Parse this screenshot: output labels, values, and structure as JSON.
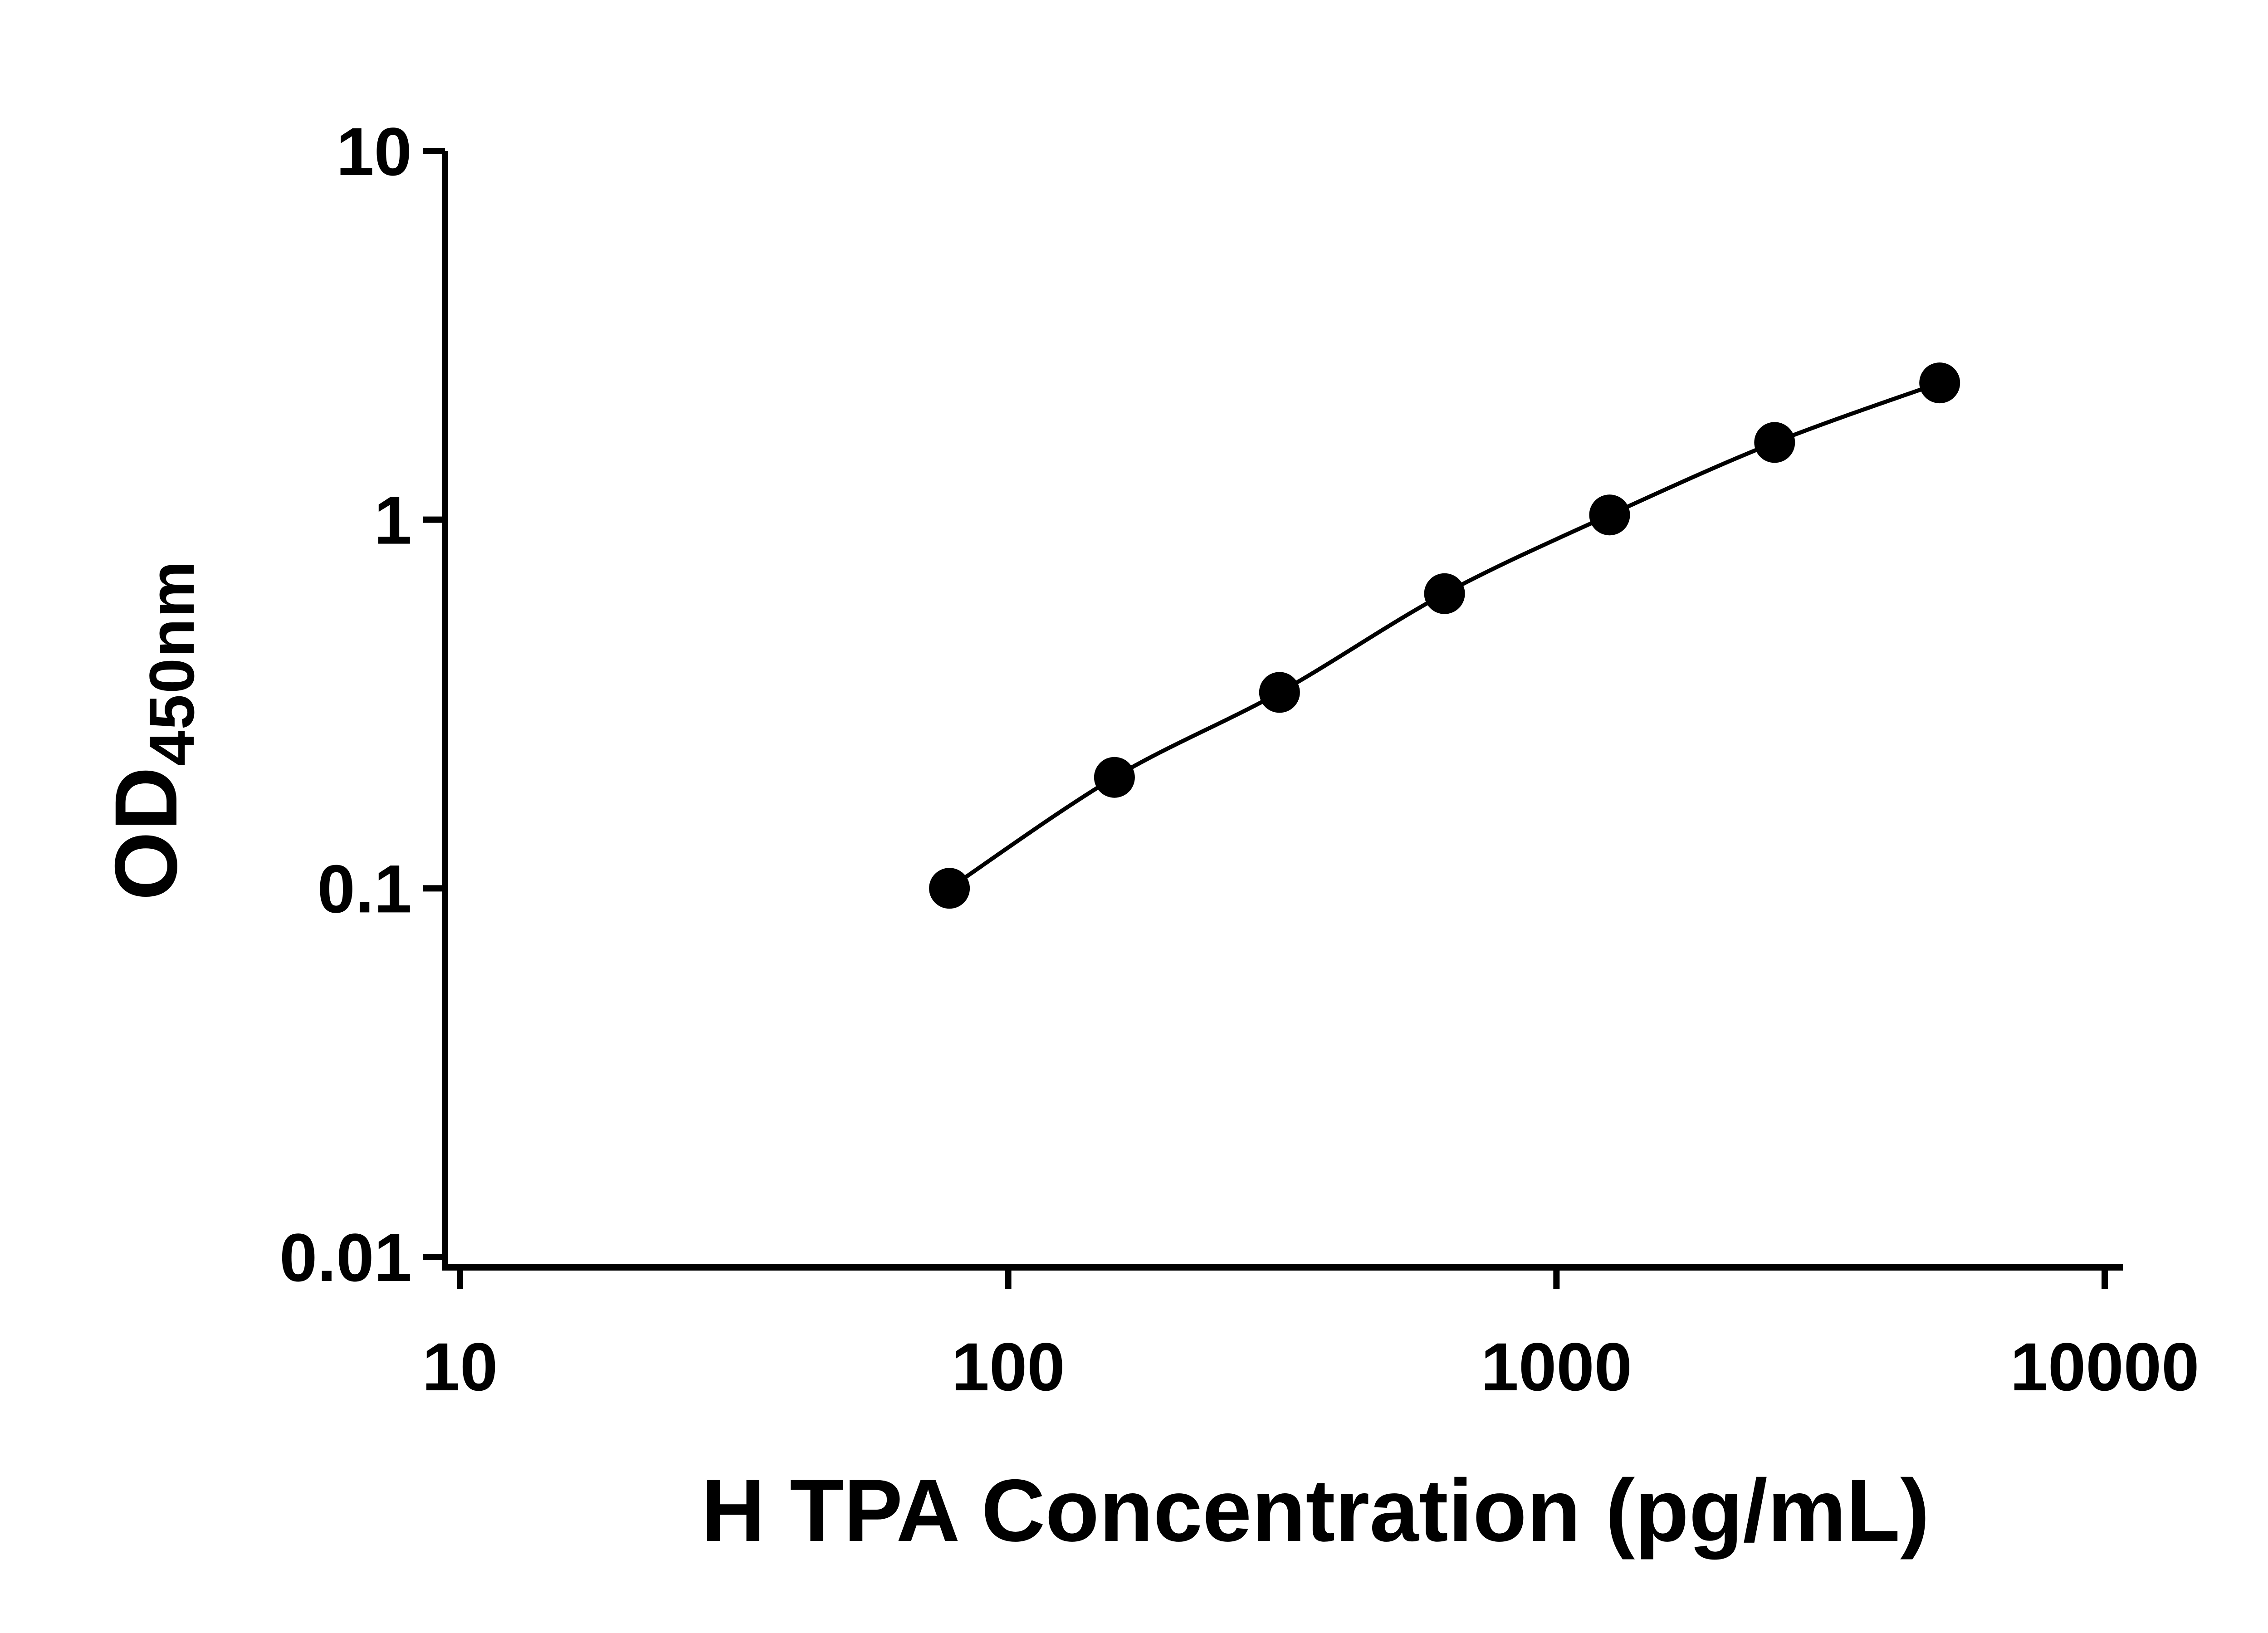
{
  "chart_data": {
    "type": "line",
    "title": "",
    "xlabel": "H TPA Concentration (pg/mL)",
    "ylabel_main": "OD",
    "ylabel_sub": "450nm",
    "xscale": "log",
    "yscale": "log",
    "xlim": [
      10,
      10000
    ],
    "ylim": [
      0.01,
      10
    ],
    "grid": false,
    "legend": "none",
    "x": [
      78.125,
      156.25,
      312.5,
      625,
      1250,
      2500,
      5000
    ],
    "y": [
      0.1,
      0.2,
      0.34,
      0.63,
      1.03,
      1.62,
      2.35
    ],
    "x_ticks": {
      "values": [
        10,
        100,
        1000,
        10000
      ],
      "labels": [
        "10",
        "100",
        "1000",
        "10000"
      ]
    },
    "y_ticks": {
      "values": [
        0.01,
        0.1,
        1,
        10
      ],
      "labels": [
        "0.01",
        "0.1",
        "1",
        "10"
      ]
    },
    "colors": {
      "marker": "#000000",
      "line": "#000000",
      "axis": "#000000",
      "text": "#000000",
      "background": "#ffffff"
    }
  }
}
